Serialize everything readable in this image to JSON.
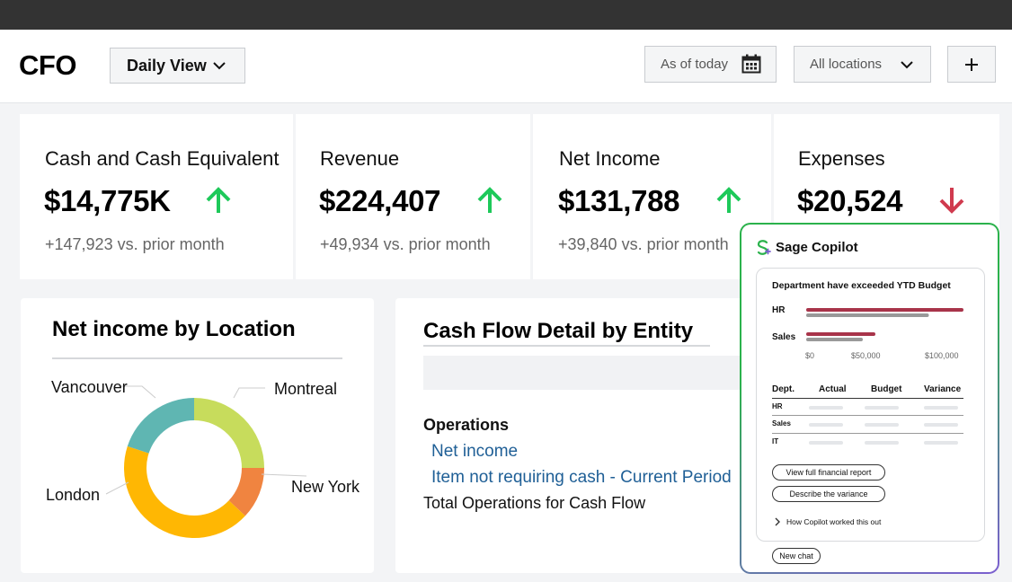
{
  "header": {
    "title": "CFO",
    "view_select": "Daily View",
    "date_filter": "As of today",
    "location_filter": "All locations"
  },
  "kpis": [
    {
      "label": "Cash and Cash Equivalent",
      "value": "$14,775K",
      "trend": "up",
      "change": "+147,923 vs. prior month"
    },
    {
      "label": "Revenue",
      "value": "$224,407",
      "trend": "up",
      "change": "+49,934 vs. prior month"
    },
    {
      "label": "Net Income",
      "value": "$131,788",
      "trend": "up",
      "change": "+39,840 vs. prior month"
    },
    {
      "label": "Expenses",
      "value": "$20,524",
      "trend": "down"
    }
  ],
  "colors": {
    "up": "#1ec95a",
    "down": "#d03a4e",
    "link": "#1f5f96"
  },
  "net_income_card": {
    "title": "Net income by Location",
    "chart_data": {
      "type": "pie",
      "labels": [
        "Montreal",
        "New York",
        "London",
        "Vancouver"
      ],
      "values": [
        25,
        12,
        43,
        20
      ],
      "colors": [
        "#c7dc5c",
        "#f08440",
        "#ffb703",
        "#5fb6b2"
      ]
    }
  },
  "cash_flow_card": {
    "title": "Cash Flow Detail by Entity",
    "section": "Operations",
    "links": [
      "Net income",
      "Item not requiring cash - Current Period"
    ],
    "total": "Total Operations for Cash Flow"
  },
  "copilot": {
    "title": "Sage Copilot",
    "message_title": "Department have exceeded YTD Budget",
    "chart_data": {
      "type": "bar",
      "categories": [
        "HR",
        "Sales"
      ],
      "series": [
        {
          "values": [
            100000,
            44000
          ],
          "color": "#a8344a"
        },
        {
          "values": [
            78000,
            36000
          ],
          "color": "#999999"
        }
      ],
      "xlim": [
        0,
        100000
      ],
      "tick_labels": [
        "$0",
        "$50,000",
        "$100,000"
      ]
    },
    "table": {
      "headers": [
        "Dept.",
        "Actual",
        "Budget",
        "Variance"
      ],
      "rows": [
        "HR",
        "Sales",
        "IT"
      ]
    },
    "actions": [
      "View full financial report",
      "Describe the variance"
    ],
    "explain": "How Copilot worked this out",
    "new_chat": "New chat"
  }
}
